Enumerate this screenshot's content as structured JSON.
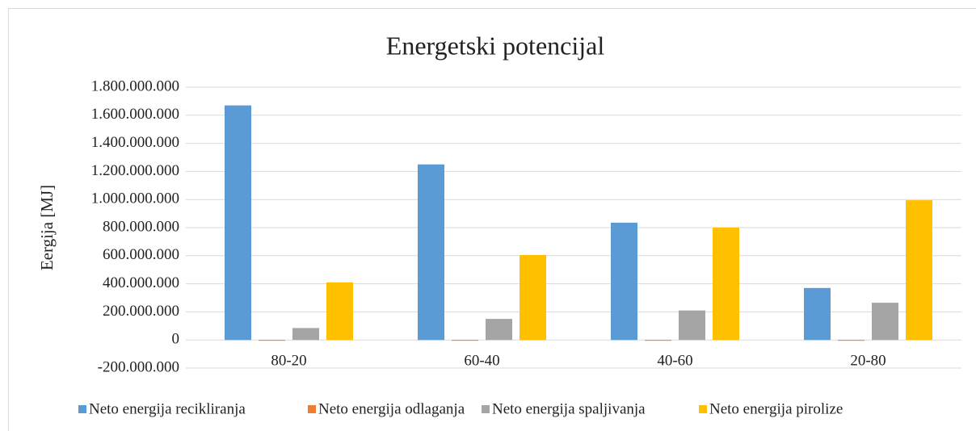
{
  "chart_data": {
    "type": "bar",
    "title": "Energetski potencijal",
    "y_label": "Eergija [MJ]",
    "categories": [
      "80-20",
      "60-40",
      "40-60",
      "20-80"
    ],
    "series": [
      {
        "name": "Neto energija recikliranja",
        "color": "#5b9bd5",
        "values": [
          1670000000,
          1250000000,
          835000000,
          370000000
        ]
      },
      {
        "name": "Neto energija odlaganja",
        "color": "#ed7d31",
        "values": [
          -5000000,
          -5000000,
          -5000000,
          -5000000
        ]
      },
      {
        "name": "Neto energija spaljivanja",
        "color": "#a5a5a5",
        "values": [
          85000000,
          150000000,
          210000000,
          265000000
        ]
      },
      {
        "name": "Neto energija pirolize",
        "color": "#ffc000",
        "values": [
          410000000,
          605000000,
          800000000,
          995000000
        ]
      }
    ],
    "ylim": [
      -200000000,
      1800000000
    ],
    "yticks": [
      {
        "value": -200000000,
        "label": "-200.000.000"
      },
      0,
      {
        "value": 200000000,
        "label": "200.000.000"
      },
      {
        "value": 400000000,
        "label": "400.000.000"
      },
      {
        "value": 600000000,
        "label": "600.000.000"
      },
      {
        "value": 800000000,
        "label": "800.000.000"
      },
      {
        "value": 1000000000,
        "label": "1.000.000.000"
      },
      {
        "value": 1200000000,
        "label": "1.200.000.000"
      },
      {
        "value": 1400000000,
        "label": "1.400.000.000"
      },
      {
        "value": 1600000000,
        "label": "1.600.000.000"
      },
      {
        "value": 1800000000,
        "label": "1.800.000.000"
      }
    ],
    "grid": true,
    "legend": "bottom"
  }
}
